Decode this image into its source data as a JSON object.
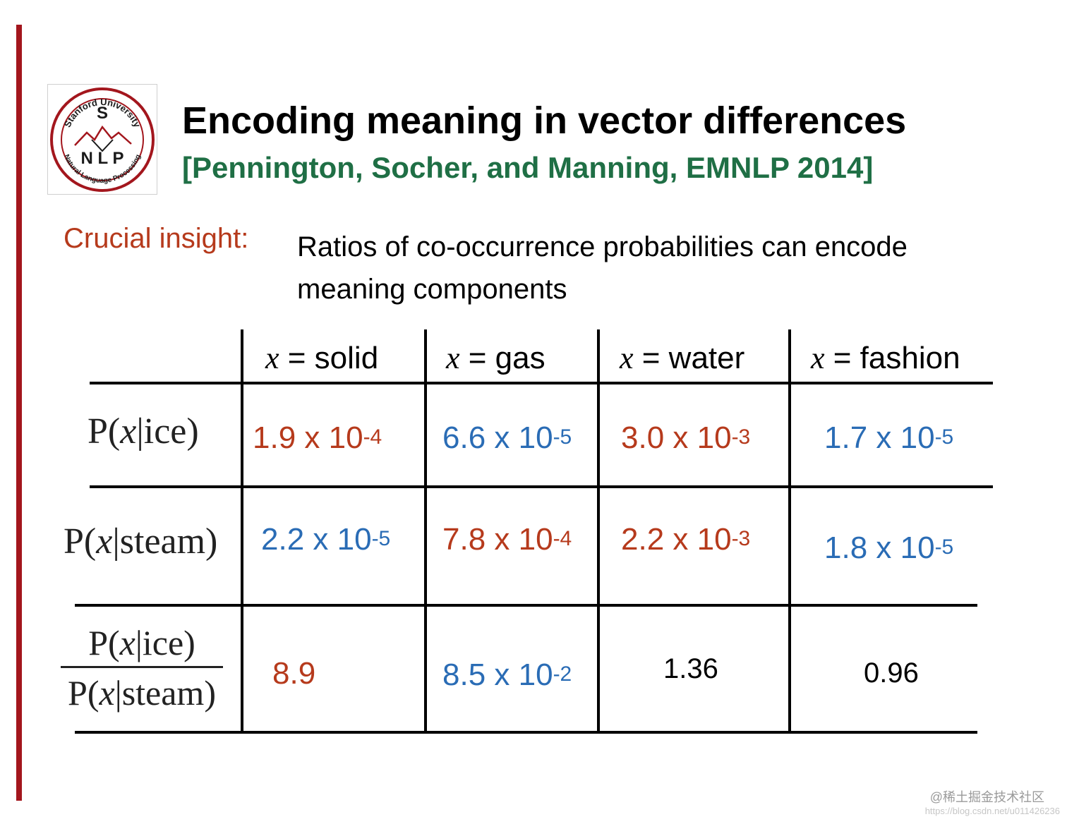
{
  "logo": {
    "top_text": "Stanford University",
    "letter": "S",
    "middle_text": "N L P",
    "bottom_text": "Natural Language Processing",
    "colors": {
      "ring": "#a3161d",
      "text": "#1a1a1a"
    }
  },
  "header": {
    "title": "Encoding meaning in vector differences",
    "subtitle": "[Pennington, Socher, and Manning, EMNLP 2014]"
  },
  "insight": {
    "label": "Crucial insight:",
    "line1": "Ratios of co-occurrence probabilities can encode",
    "line2": "meaning components"
  },
  "table": {
    "columns": [
      {
        "var": "x",
        "eq": " = solid"
      },
      {
        "var": "x",
        "eq": " = gas"
      },
      {
        "var": "x",
        "eq": " = water"
      },
      {
        "var": "x",
        "eq": " = fashion"
      }
    ],
    "row_labels": {
      "ice": {
        "p": "P(",
        "var": "x",
        "rest": "|ice)"
      },
      "steam": {
        "p": "P(",
        "var": "x",
        "rest": "|steam)"
      },
      "ratio_num": {
        "p": "P(",
        "var": "x",
        "rest": "|ice)"
      },
      "ratio_den": {
        "p": "P(",
        "var": "x",
        "rest": "|steam)"
      }
    },
    "rows": {
      "ice": [
        {
          "base": "1.9 x 10",
          "exp": "-4"
        },
        {
          "base": "6.6 x 10",
          "exp": "-5"
        },
        {
          "base": "3.0 x 10",
          "exp": "-3"
        },
        {
          "base": "1.7 x 10",
          "exp": "-5"
        }
      ],
      "steam": [
        {
          "base": "2.2 x 10",
          "exp": "-5"
        },
        {
          "base": "7.8 x 10",
          "exp": "-4"
        },
        {
          "base": "2.2 x 10",
          "exp": "-3"
        },
        {
          "base": "1.8 x 10",
          "exp": "-5"
        }
      ],
      "ratio": [
        {
          "base": "8.9",
          "exp": ""
        },
        {
          "base": "8.5 x 10",
          "exp": "-2"
        },
        {
          "base": "1.36",
          "exp": ""
        },
        {
          "base": "0.96",
          "exp": ""
        }
      ]
    },
    "colors": {
      "red": "#b63a1c",
      "blue": "#2a6cb5"
    }
  },
  "watermark": {
    "text": "@稀土掘金技术社区",
    "url": "https://blog.csdn.net/u011426236"
  }
}
